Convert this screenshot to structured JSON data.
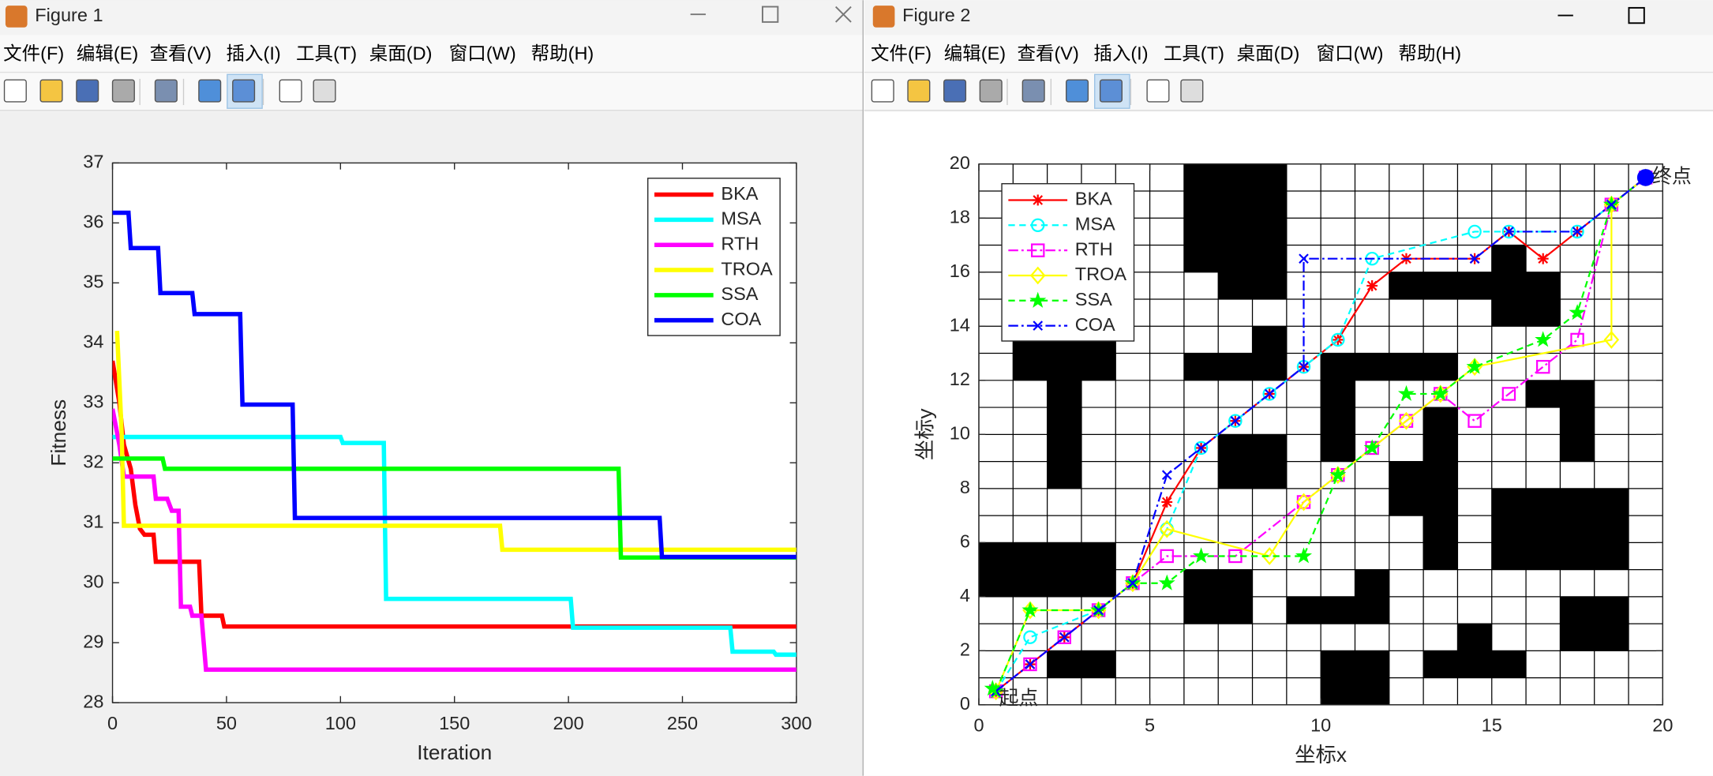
{
  "windows": [
    {
      "title": "Figure 1",
      "menu": [
        "文件(F)",
        "编辑(E)",
        "查看(V)",
        "插入(I)",
        "工具(T)",
        "桌面(D)",
        "窗口(W)",
        "帮助(H)"
      ]
    },
    {
      "title": "Figure 2",
      "menu": [
        "文件(F)",
        "编辑(E)",
        "查看(V)",
        "插入(I)",
        "工具(T)",
        "桌面(D)",
        "窗口(W)",
        "帮助(H)"
      ]
    }
  ],
  "chart_data": [
    {
      "type": "line",
      "xlabel": "Iteration",
      "ylabel": "Fitness",
      "xlim": [
        0,
        300
      ],
      "ylim": [
        28,
        37
      ],
      "xticks": [
        0,
        50,
        100,
        150,
        200,
        250,
        300
      ],
      "yticks": [
        28,
        29,
        30,
        31,
        32,
        33,
        34,
        35,
        36,
        37
      ],
      "legend": "upper right",
      "series": [
        {
          "name": "BKA",
          "color": "#ff0000",
          "linestyle": "solid",
          "x": [
            0,
            3,
            5,
            8,
            10,
            12,
            14,
            18,
            19,
            38,
            39,
            48,
            49,
            300
          ],
          "values": [
            33.7,
            33.0,
            32.3,
            31.9,
            31.3,
            30.9,
            30.8,
            30.8,
            30.35,
            30.35,
            29.45,
            29.45,
            29.27,
            29.27
          ]
        },
        {
          "name": "MSA",
          "color": "#00ffff",
          "linestyle": "solid",
          "x": [
            0,
            100,
            101,
            119,
            120,
            201,
            202,
            271,
            272,
            290,
            291,
            300
          ],
          "values": [
            32.43,
            32.43,
            32.33,
            32.33,
            29.73,
            29.73,
            29.25,
            29.25,
            28.85,
            28.85,
            28.8,
            28.8
          ]
        },
        {
          "name": "RTH",
          "color": "#ff00ff",
          "linestyle": "solid",
          "x": [
            0,
            3,
            5,
            18,
            19,
            24,
            26,
            29,
            30,
            34,
            35,
            39,
            41,
            300
          ],
          "values": [
            32.9,
            32.3,
            31.77,
            31.77,
            31.4,
            31.4,
            31.2,
            31.2,
            29.6,
            29.6,
            29.45,
            29.45,
            28.55,
            28.55
          ]
        },
        {
          "name": "TROA",
          "color": "#ffff00",
          "linestyle": "solid",
          "x": [
            2,
            4,
            5,
            170,
            171,
            300
          ],
          "values": [
            34.2,
            32.5,
            30.95,
            30.95,
            30.55,
            30.55
          ]
        },
        {
          "name": "SSA",
          "color": "#00ff00",
          "linestyle": "solid",
          "x": [
            0,
            22,
            23,
            222,
            223,
            300
          ],
          "values": [
            32.07,
            32.07,
            31.9,
            31.9,
            30.42,
            30.42
          ]
        },
        {
          "name": "COA",
          "color": "#0000ff",
          "linestyle": "solid",
          "x": [
            0,
            7,
            8,
            20,
            21,
            35,
            36,
            56,
            57,
            79,
            80,
            240,
            241,
            300
          ],
          "values": [
            36.17,
            36.17,
            35.58,
            35.58,
            34.83,
            34.83,
            34.48,
            34.48,
            32.97,
            32.97,
            31.08,
            31.08,
            30.43,
            30.43
          ]
        }
      ]
    },
    {
      "type": "path-map",
      "xlabel": "坐标x",
      "ylabel": "坐标y",
      "xlim": [
        0,
        20
      ],
      "ylim": [
        0,
        20
      ],
      "xticks": [
        0,
        5,
        10,
        15,
        20
      ],
      "yticks": [
        0,
        2,
        4,
        6,
        8,
        10,
        12,
        14,
        16,
        18,
        20
      ],
      "cell_grid": true,
      "legend": "upper left",
      "obstacle_color": "#000000",
      "obstacles": [
        [
          6,
          16,
          3,
          4
        ],
        [
          7,
          15,
          2,
          1
        ],
        [
          6,
          12,
          3,
          1
        ],
        [
          8,
          13,
          1,
          1
        ],
        [
          1,
          12,
          3,
          2
        ],
        [
          2,
          8,
          1,
          4
        ],
        [
          7,
          8,
          2,
          2
        ],
        [
          0,
          4,
          4,
          2
        ],
        [
          2,
          1,
          2,
          1
        ],
        [
          6,
          3,
          2,
          2
        ],
        [
          9,
          3,
          3,
          1
        ],
        [
          11,
          4,
          1,
          1
        ],
        [
          10,
          0,
          2,
          2
        ],
        [
          10,
          9,
          1,
          3
        ],
        [
          10,
          12,
          4,
          1
        ],
        [
          12,
          7,
          1,
          2
        ],
        [
          13,
          5,
          1,
          6
        ],
        [
          12,
          15,
          5,
          1
        ],
        [
          15,
          16,
          1,
          1
        ],
        [
          15,
          14,
          2,
          1
        ],
        [
          16,
          11,
          2,
          1
        ],
        [
          17,
          9,
          1,
          2
        ],
        [
          15,
          5,
          4,
          3
        ],
        [
          17,
          2,
          2,
          2
        ],
        [
          13,
          1,
          3,
          1
        ],
        [
          14,
          2,
          1,
          1
        ]
      ],
      "series": [
        {
          "name": "BKA",
          "color": "#ff0000",
          "linestyle": "solid",
          "marker": "*",
          "x": [
            0.5,
            1.5,
            2.5,
            3.5,
            4.5,
            5.5,
            6.5,
            7.5,
            8.5,
            9.5,
            10.5,
            11.5,
            12.5,
            14.5,
            15.5,
            16.5,
            17.5,
            18.5,
            19.5
          ],
          "values": [
            0.5,
            1.5,
            2.5,
            3.5,
            4.5,
            7.5,
            9.5,
            10.5,
            11.5,
            12.5,
            13.5,
            15.5,
            16.5,
            16.5,
            17.5,
            16.5,
            17.5,
            18.5,
            19.5
          ]
        },
        {
          "name": "MSA",
          "color": "#00ffff",
          "linestyle": "dashed",
          "marker": "o",
          "x": [
            0.5,
            1.5,
            3.5,
            4.5,
            5.5,
            6.5,
            7.5,
            8.5,
            9.5,
            10.5,
            11.5,
            14.5,
            15.5,
            17.5,
            18.5,
            19.5
          ],
          "values": [
            0.5,
            2.5,
            3.5,
            4.5,
            6.5,
            9.5,
            10.5,
            11.5,
            12.5,
            13.5,
            16.5,
            17.5,
            17.5,
            17.5,
            18.5,
            19.5
          ]
        },
        {
          "name": "RTH",
          "color": "#ff00ff",
          "linestyle": "dashdot",
          "marker": "s",
          "x": [
            0.5,
            1.5,
            2.5,
            3.5,
            4.5,
            5.5,
            7.5,
            9.5,
            10.5,
            11.5,
            12.5,
            13.5,
            14.5,
            15.5,
            16.5,
            17.5,
            18.5,
            19.5
          ],
          "values": [
            0.5,
            1.5,
            2.5,
            3.5,
            4.5,
            5.5,
            5.5,
            7.5,
            8.5,
            9.5,
            10.5,
            11.5,
            10.5,
            11.5,
            12.5,
            13.5,
            18.5,
            19.5
          ]
        },
        {
          "name": "TROA",
          "color": "#ffff00",
          "linestyle": "solid",
          "marker": "d",
          "x": [
            0.5,
            1.5,
            3.5,
            4.5,
            5.5,
            8.5,
            9.5,
            10.5,
            12.5,
            13.5,
            14.5,
            18.5,
            18.5,
            19.5
          ],
          "values": [
            0.5,
            3.5,
            3.5,
            4.5,
            6.5,
            5.5,
            7.5,
            8.5,
            10.5,
            11.5,
            12.5,
            13.5,
            18.5,
            19.5
          ]
        },
        {
          "name": "SSA",
          "color": "#00ff00",
          "linestyle": "dashed",
          "marker": "p",
          "x": [
            0.5,
            1.5,
            3.5,
            4.5,
            5.5,
            6.5,
            9.5,
            10.5,
            11.5,
            12.5,
            13.5,
            14.5,
            16.5,
            17.5,
            18.5,
            19.5
          ],
          "values": [
            0.5,
            3.5,
            3.5,
            4.5,
            4.5,
            5.5,
            5.5,
            8.5,
            9.5,
            11.5,
            11.5,
            12.5,
            13.5,
            14.5,
            18.5,
            19.5
          ]
        },
        {
          "name": "COA",
          "color": "#0000ff",
          "linestyle": "dashdot",
          "marker": "x",
          "x": [
            0.5,
            1.5,
            2.5,
            3.5,
            4.5,
            5.5,
            6.5,
            7.5,
            8.5,
            9.5,
            9.5,
            14.5,
            15.5,
            17.5,
            18.5,
            19.5
          ],
          "values": [
            0.5,
            1.5,
            2.5,
            3.5,
            4.5,
            8.5,
            9.5,
            10.5,
            11.5,
            12.5,
            16.5,
            16.5,
            17.5,
            17.5,
            18.5,
            19.5
          ]
        }
      ],
      "annotations": [
        {
          "text": "起点",
          "x": 0.4,
          "y": 0.6,
          "marker": "p",
          "color": "#00ff00"
        },
        {
          "text": "终点",
          "x": 19.5,
          "y": 19.5,
          "marker": "o",
          "color": "#0000ff"
        }
      ]
    }
  ]
}
